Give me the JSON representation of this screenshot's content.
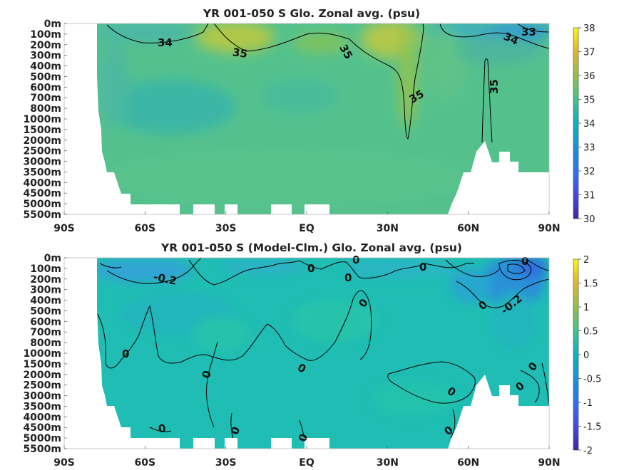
{
  "chart_data": [
    {
      "type": "heatmap",
      "title": "YR 001-050 S Glo. Zonal avg. (psu)",
      "x_ticks": [
        "90S",
        "60S",
        "30S",
        "EQ",
        "30N",
        "60N",
        "90N"
      ],
      "y_ticks": [
        "0m",
        "100m",
        "200m",
        "300m",
        "400m",
        "500m",
        "600m",
        "700m",
        "800m",
        "1000m",
        "1500m",
        "2000m",
        "2500m",
        "3000m",
        "3500m",
        "4000m",
        "4500m",
        "5000m",
        "5500m"
      ],
      "xlim": [
        -90,
        90
      ],
      "colorbar": {
        "min": 30,
        "max": 38,
        "ticks": [
          "38",
          "37",
          "36",
          "35",
          "34",
          "33",
          "32",
          "31",
          "30"
        ]
      },
      "contour_labels": [
        "34",
        "35",
        "35",
        "35",
        "35",
        "34",
        "33"
      ],
      "colors": {
        "background_field": "#54c18d",
        "low": "#2a8ecf",
        "high": "#c6cc3e"
      }
    },
    {
      "type": "heatmap",
      "title": "YR 001-050 S (Model-Clm.) Glo. Zonal avg. (psu)",
      "x_ticks": [
        "90S",
        "60S",
        "30S",
        "EQ",
        "30N",
        "60N",
        "90N"
      ],
      "y_ticks": [
        "0m",
        "100m",
        "200m",
        "300m",
        "400m",
        "500m",
        "600m",
        "700m",
        "800m",
        "1000m",
        "1500m",
        "2000m",
        "2500m",
        "3000m",
        "3500m",
        "4000m",
        "4500m",
        "5000m",
        "5500m"
      ],
      "xlim": [
        -90,
        90
      ],
      "colorbar": {
        "min": -2,
        "max": 2,
        "ticks": [
          "2",
          "1.5",
          "1",
          "0.5",
          "0",
          "-0.5",
          "-1",
          "-1.5",
          "-2"
        ]
      },
      "contour_labels": [
        "-0.2",
        "0",
        "0",
        "0",
        "0",
        "0",
        "-0.2",
        "0",
        "0",
        "0",
        "0",
        "0",
        "0",
        "0",
        "0",
        "0",
        "0"
      ],
      "colors": {
        "background_field": "#1fbdb3",
        "low": "#2a9fd6",
        "high": "#27c4a8"
      }
    }
  ]
}
